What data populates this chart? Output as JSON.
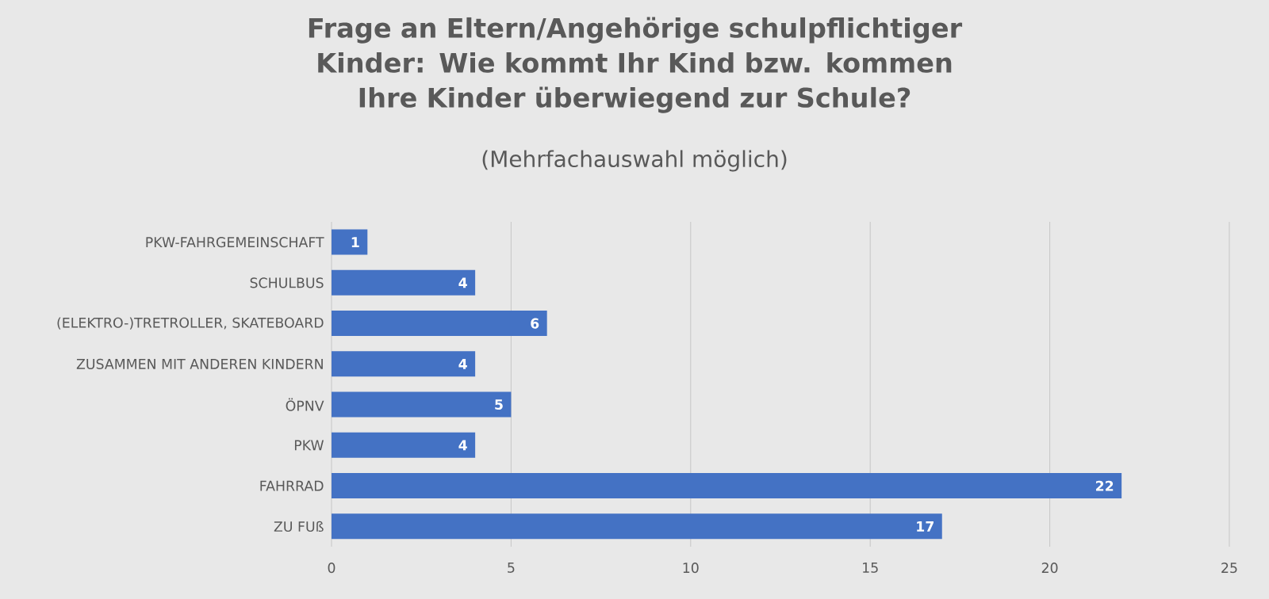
{
  "chart_data": {
    "type": "bar",
    "orientation": "horizontal",
    "title": "Frage an Eltern/Angehörige schulpflichtiger Kinder: Wie kommt Ihr Kind bzw. kommen Ihre Kinder überwiegend zur Schule?",
    "subtitle": "(Mehrfachauswahl möglich)",
    "categories": [
      "PKW-FAHRGEMEINSCHAFT",
      "SCHULBUS",
      "(ELEKTRO-)TRETROLLER, SKATEBOARD",
      "ZUSAMMEN MIT ANDEREN KINDERN",
      "ÖPNV",
      "PKW",
      "FAHRRAD",
      "ZU FUß"
    ],
    "values": [
      1,
      4,
      6,
      4,
      5,
      4,
      22,
      17
    ],
    "color": "#4472c4",
    "xlim": [
      0,
      25
    ],
    "xticks": [
      0,
      5,
      10,
      15,
      20,
      25
    ],
    "grid": "x",
    "data_labels": true
  }
}
